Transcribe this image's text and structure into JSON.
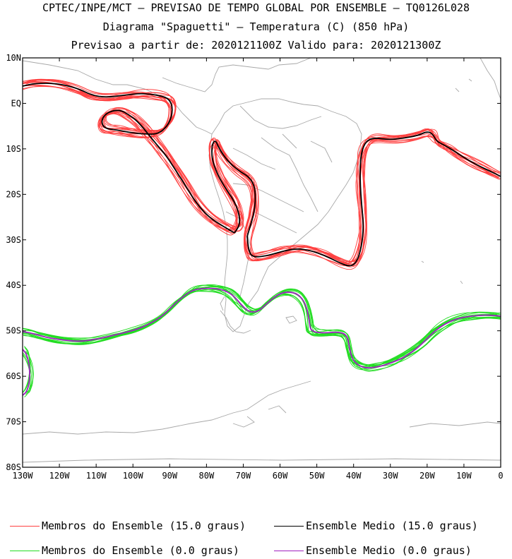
{
  "header": {
    "line1": "CPTEC/INPE/MCT – PREVISAO DE TEMPO GLOBAL POR ENSEMBLE – TQ0126L028",
    "line2": "Diagrama \"Spaguetti\" – Temperatura (C) (850 hPa)",
    "line3": "Previsao a partir de: 2020121100Z  Valido para: 2020121300Z"
  },
  "axes": {
    "lat_labels": [
      "10N",
      "EQ",
      "10S",
      "20S",
      "30S",
      "40S",
      "50S",
      "60S",
      "70S",
      "80S"
    ],
    "lon_labels": [
      "130W",
      "120W",
      "110W",
      "100W",
      "90W",
      "80W",
      "70W",
      "60W",
      "50W",
      "40W",
      "30W",
      "20W",
      "10W",
      "0"
    ]
  },
  "legend": {
    "items": [
      {
        "label": "Membros do Ensemble (15.0 graus)",
        "color": "#ff4040"
      },
      {
        "label": "Ensemble Medio (15.0 graus)",
        "color": "#000000"
      },
      {
        "label": "Membros do Ensemble (0.0 graus)",
        "color": "#22dd22"
      },
      {
        "label": "Ensemble Medio (0.0 graus)",
        "color": "#a020c0"
      }
    ]
  },
  "colors": {
    "warm_members": "#ff4040",
    "warm_mean": "#000000",
    "cold_members": "#22dd22",
    "cold_mean": "#a020c0",
    "coast": "#a8a8a8"
  }
}
